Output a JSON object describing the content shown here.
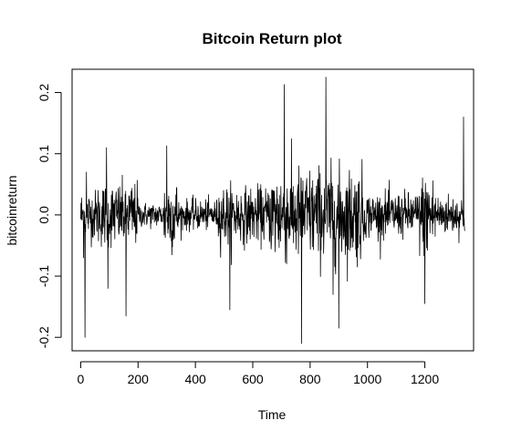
{
  "chart_data": {
    "type": "line",
    "title": "Bitcoin Return plot",
    "xlabel": "Time",
    "ylabel": "bitcoinreturn",
    "xlim": [
      -30,
      1370
    ],
    "ylim": [
      -0.222,
      0.238
    ],
    "x_ticks": [
      0,
      200,
      400,
      600,
      800,
      1000,
      1200
    ],
    "x_tick_labels": [
      "0",
      "200",
      "400",
      "600",
      "800",
      "1000",
      "1200"
    ],
    "y_ticks": [
      -0.2,
      -0.1,
      0.0,
      0.1,
      0.2
    ],
    "y_tick_labels": [
      "-0.2",
      "-0.1",
      "0.0",
      "0.1",
      "0.2"
    ],
    "grid": false,
    "line_color": "#000000",
    "n_points": 1340,
    "notable_points": [
      {
        "x": 10,
        "y": -0.07
      },
      {
        "x": 15,
        "y": -0.2
      },
      {
        "x": 20,
        "y": 0.07
      },
      {
        "x": 90,
        "y": 0.11
      },
      {
        "x": 95,
        "y": -0.12
      },
      {
        "x": 158,
        "y": -0.165
      },
      {
        "x": 300,
        "y": 0.113
      },
      {
        "x": 520,
        "y": -0.155
      },
      {
        "x": 710,
        "y": 0.213
      },
      {
        "x": 770,
        "y": -0.21
      },
      {
        "x": 855,
        "y": 0.225
      },
      {
        "x": 880,
        "y": -0.13
      },
      {
        "x": 900,
        "y": -0.185
      },
      {
        "x": 1200,
        "y": -0.145
      },
      {
        "x": 1335,
        "y": 0.16
      }
    ]
  }
}
